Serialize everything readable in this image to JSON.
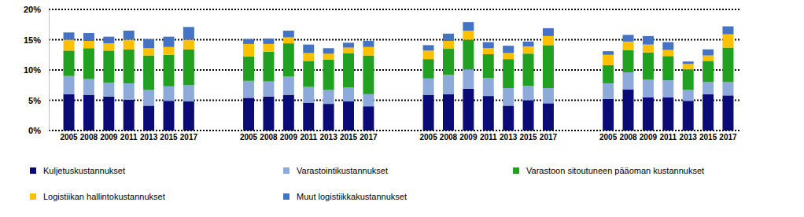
{
  "chart_data": {
    "type": "bar",
    "stacked": true,
    "grid": true,
    "legend": "bottom",
    "categories": [
      "2005",
      "2008",
      "2009",
      "2011",
      "2013",
      "2015",
      "2017",
      null,
      null,
      "2005",
      "2008",
      "2009",
      "2011",
      "2013",
      "2015",
      "2017",
      null,
      null,
      "2005",
      "2008",
      "2009",
      "2011",
      "2013",
      "2015",
      "2017",
      null,
      null,
      "2005",
      "2008",
      "2009",
      "2011",
      "2013",
      "2015",
      "2017"
    ],
    "ylim": [
      0,
      20
    ],
    "yticks": [
      {
        "value": 0,
        "label": "0%"
      },
      {
        "value": 5,
        "label": "5%"
      },
      {
        "value": 10,
        "label": "10%"
      },
      {
        "value": 15,
        "label": "15%"
      },
      {
        "value": 20,
        "label": "20%"
      }
    ],
    "series": [
      {
        "name": "Kuljetuskustannukset",
        "color": "#0b0b78",
        "values": [
          6.0,
          5.9,
          5.6,
          5.1,
          4.1,
          4.9,
          4.8,
          null,
          null,
          5.4,
          5.6,
          5.9,
          4.6,
          4.4,
          4.8,
          4.0,
          null,
          null,
          5.9,
          6.0,
          6.9,
          5.7,
          4.1,
          5.0,
          4.5,
          null,
          null,
          5.2,
          6.8,
          5.5,
          5.5,
          4.9,
          6.0,
          5.8
        ]
      },
      {
        "name": "Varastointikustannukset",
        "color": "#8eaadb",
        "values": [
          3.0,
          2.6,
          2.3,
          2.7,
          2.6,
          2.4,
          2.7,
          null,
          null,
          2.8,
          2.5,
          3.0,
          2.6,
          2.3,
          2.3,
          2.0,
          null,
          null,
          2.7,
          3.2,
          3.2,
          3.0,
          2.9,
          2.4,
          2.5,
          null,
          null,
          2.6,
          2.8,
          2.9,
          2.8,
          1.8,
          2.0,
          2.2
        ]
      },
      {
        "name": "Varastoon sitoutuneen pääoman kustannukset",
        "color": "#22a022",
        "values": [
          4.2,
          5.1,
          5.3,
          5.6,
          5.7,
          5.2,
          5.9,
          null,
          null,
          4.0,
          4.9,
          5.5,
          4.3,
          5.0,
          5.7,
          6.4,
          null,
          null,
          3.2,
          4.3,
          4.9,
          3.9,
          4.8,
          5.3,
          7.1,
          null,
          null,
          3.0,
          3.7,
          4.5,
          4.0,
          3.4,
          3.5,
          5.7
        ]
      },
      {
        "name": "Logistiikan hallintokustannukset",
        "color": "#ffc000",
        "values": [
          1.8,
          1.2,
          1.2,
          1.6,
          1.2,
          1.3,
          1.6,
          null,
          null,
          2.1,
          1.3,
          1.0,
          1.3,
          1.0,
          0.9,
          1.4,
          null,
          null,
          1.4,
          1.3,
          1.5,
          1.0,
          1.0,
          1.2,
          1.5,
          null,
          null,
          1.7,
          1.4,
          1.3,
          1.0,
          0.9,
          0.9,
          2.2
        ]
      },
      {
        "name": "Muut logistiikkakustannukset",
        "color": "#4472c4",
        "values": [
          1.2,
          1.3,
          1.1,
          1.5,
          1.5,
          1.7,
          2.1,
          null,
          null,
          0.8,
          0.9,
          1.1,
          1.4,
          0.9,
          0.8,
          1.0,
          null,
          null,
          0.9,
          1.2,
          1.4,
          1.0,
          1.2,
          0.8,
          1.3,
          null,
          null,
          0.6,
          1.1,
          1.4,
          1.3,
          0.4,
          1.0,
          1.3
        ]
      }
    ]
  }
}
